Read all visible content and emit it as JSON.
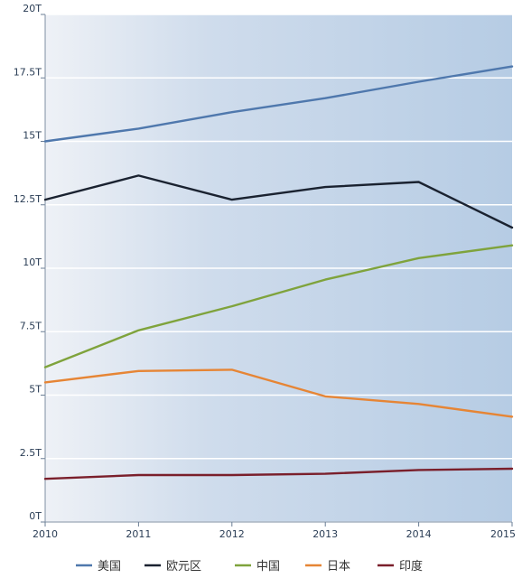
{
  "chart_data": {
    "type": "line",
    "title": "",
    "xlabel": "",
    "ylabel": "",
    "x": [
      "2010",
      "2011",
      "2012",
      "2013",
      "2014",
      "2015"
    ],
    "ylim": [
      0,
      20
    ],
    "yticks": [
      0,
      2.5,
      5,
      7.5,
      10,
      12.5,
      15,
      17.5,
      20
    ],
    "ytick_labels": [
      "0T",
      "2.5T",
      "5T",
      "7.5T",
      "10T",
      "12.5T",
      "15T",
      "17.5T",
      "20T"
    ],
    "grid": "horizontal",
    "legend_position": "bottom",
    "series": [
      {
        "name": "美国",
        "color": "#4f78ad",
        "values": [
          15.0,
          15.5,
          16.15,
          16.7,
          17.35,
          17.95
        ]
      },
      {
        "name": "欧元区",
        "color": "#1a2230",
        "values": [
          12.7,
          13.65,
          12.7,
          13.2,
          13.4,
          11.6
        ]
      },
      {
        "name": "中国",
        "color": "#7fa33c",
        "values": [
          6.1,
          7.55,
          8.5,
          9.55,
          10.4,
          10.9
        ]
      },
      {
        "name": "日本",
        "color": "#e68535",
        "values": [
          5.5,
          5.95,
          6.0,
          4.95,
          4.65,
          4.15
        ]
      },
      {
        "name": "印度",
        "color": "#7a1f2b",
        "values": [
          1.7,
          1.85,
          1.85,
          1.9,
          2.05,
          2.1
        ]
      }
    ]
  }
}
